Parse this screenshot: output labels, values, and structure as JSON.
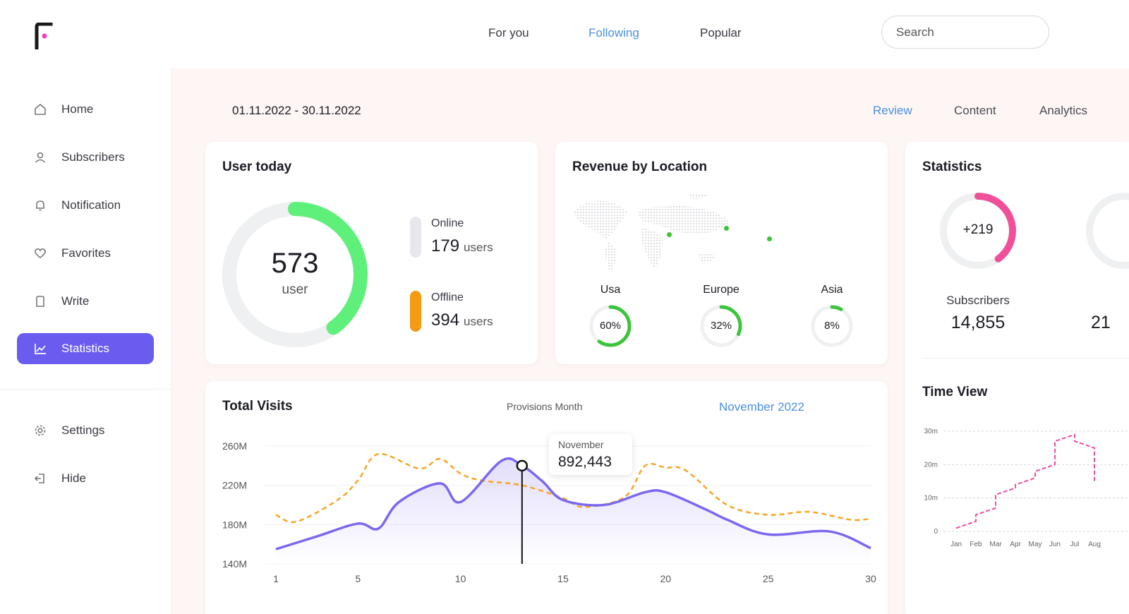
{
  "topnav": {
    "tabs": [
      {
        "label": "For you",
        "active": false
      },
      {
        "label": "Following",
        "active": true
      },
      {
        "label": "Popular",
        "active": false
      }
    ],
    "search_placeholder": "Search"
  },
  "sidebar": {
    "items": [
      {
        "label": "Home",
        "icon": "home-icon"
      },
      {
        "label": "Subscribers",
        "icon": "user-icon"
      },
      {
        "label": "Notification",
        "icon": "bell-icon"
      },
      {
        "label": "Favorites",
        "icon": "heart-icon"
      },
      {
        "label": "Write",
        "icon": "document-icon"
      },
      {
        "label": "Statistics",
        "icon": "chart-icon",
        "active": true
      }
    ],
    "bottom_items": [
      {
        "label": "Settings",
        "icon": "gear-icon"
      },
      {
        "label": "Hide",
        "icon": "logout-icon"
      }
    ],
    "active_color": "#6b5cf0"
  },
  "header": {
    "date_range": "01.11.2022 - 30.11.2022",
    "tabs": [
      {
        "label": "Review",
        "active": true
      },
      {
        "label": "Content",
        "active": false
      },
      {
        "label": "Analytics",
        "active": false
      }
    ]
  },
  "user_today": {
    "title": "User today",
    "total": "573",
    "total_unit": "user",
    "online_label": "Online",
    "online_count": "179",
    "online_unit": "users",
    "offline_label": "Offline",
    "offline_count": "394",
    "offline_unit": "users",
    "ring_fraction": 0.4,
    "ring_color": "#5ef07a",
    "online_color": "#e8e8ec",
    "offline_color": "#f59a12"
  },
  "revenue_by_location": {
    "title": "Revenue by Location",
    "regions": [
      {
        "label": "Usa",
        "value": "60%",
        "fraction": 0.6
      },
      {
        "label": "Europe",
        "value": "32%",
        "fraction": 0.32
      },
      {
        "label": "Asia",
        "value": "8%",
        "fraction": 0.08
      }
    ],
    "accent": "#3cc43c"
  },
  "statistics": {
    "title": "Statistics",
    "ring_label": "+219",
    "ring_fraction": 0.4,
    "ring_color": "#f0509a",
    "subscribers_label": "Subscribers",
    "subscribers_value": "14,855",
    "partial_value": "21"
  },
  "total_visits": {
    "title": "Total Visits",
    "legend_provisions": "Provisions Month",
    "legend_current": "November 2022",
    "tooltip_label": "November",
    "tooltip_value": "892,443"
  },
  "time_view": {
    "title": "Time View"
  },
  "chart_data": [
    {
      "type": "line",
      "title": "Total Visits",
      "x_ticks": [
        "1",
        "5",
        "10",
        "15",
        "20",
        "25",
        "30"
      ],
      "y_ticks": [
        "260M",
        "220M",
        "180M",
        "140M"
      ],
      "ylim": [
        140,
        260
      ],
      "xlim": [
        1,
        30
      ],
      "series": [
        {
          "name": "November 2022",
          "color": "#7b68ee",
          "x": [
            1,
            3,
            5,
            6,
            7,
            9,
            10,
            12,
            13,
            14,
            15,
            17,
            19,
            20,
            22,
            23,
            25,
            28,
            30
          ],
          "y": [
            155,
            168,
            181,
            176,
            203,
            222,
            203,
            245,
            240,
            224,
            205,
            200,
            213,
            213,
            195,
            185,
            170,
            173,
            156
          ]
        },
        {
          "name": "Provisions Month",
          "color": "#f5a524",
          "x": [
            1,
            2,
            4,
            5,
            6,
            8,
            9,
            10,
            11,
            13,
            15,
            16,
            18,
            19,
            20,
            21,
            23,
            25,
            27,
            29,
            30
          ],
          "y": [
            190,
            183,
            205,
            225,
            252,
            237,
            247,
            232,
            225,
            220,
            207,
            198,
            208,
            240,
            238,
            235,
            200,
            190,
            193,
            185,
            186
          ]
        }
      ],
      "highlight": {
        "x": 13,
        "label": "November",
        "value": "892,443"
      }
    },
    {
      "type": "line",
      "title": "Time View",
      "x_ticks": [
        "Jan",
        "Feb",
        "Mar",
        "Apr",
        "May",
        "Jun",
        "Jul",
        "Aug"
      ],
      "y_ticks": [
        "30m",
        "20m",
        "10m",
        "0"
      ],
      "ylim": [
        0,
        30
      ],
      "series": [
        {
          "name": "",
          "color": "#ec4fa0",
          "x": [
            0,
            1,
            1,
            2,
            2,
            3,
            3,
            4,
            4,
            5,
            5,
            6,
            6,
            7,
            7
          ],
          "y": [
            1,
            3,
            5,
            7,
            11,
            13,
            14,
            16,
            18,
            20,
            27,
            29,
            27,
            25,
            15
          ]
        }
      ]
    }
  ]
}
